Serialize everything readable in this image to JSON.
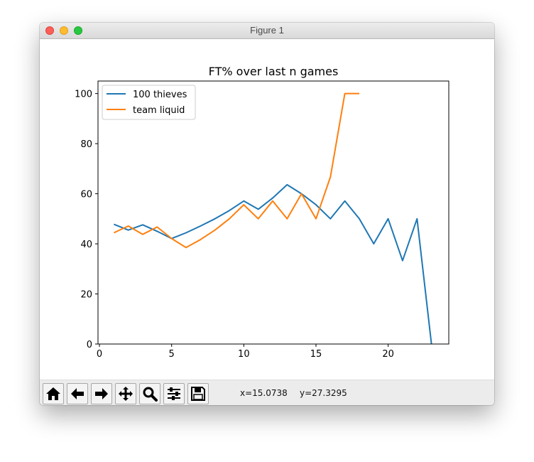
{
  "window": {
    "title": "Figure 1",
    "controls": [
      "close",
      "minimize",
      "zoom"
    ]
  },
  "toolbar": {
    "buttons": [
      "home-icon",
      "back-arrow-icon",
      "forward-arrow-icon",
      "pan-move-icon",
      "zoom-magnifier-icon",
      "configure-subplots-icon",
      "save-floppy-icon"
    ],
    "x_readout": "x=15.0738",
    "y_readout": "y=27.3295"
  },
  "chart_data": {
    "type": "line",
    "title": "FT% over last n games",
    "xlabel": "",
    "ylabel": "",
    "xlim": [
      -0.1,
      24.2
    ],
    "ylim": [
      0,
      105
    ],
    "xticks": [
      0,
      5,
      10,
      15,
      20
    ],
    "yticks": [
      0,
      20,
      40,
      60,
      80,
      100
    ],
    "legend_position": "top-left",
    "grid": false,
    "series": [
      {
        "name": "100 thieves",
        "color": "#1f77b4",
        "x": [
          1,
          2,
          3,
          4,
          5,
          6,
          7,
          8,
          9,
          10,
          11,
          12,
          13,
          14,
          15,
          16,
          17,
          18,
          19,
          20,
          21,
          22,
          23
        ],
        "y": [
          47.8,
          45.5,
          47.6,
          45.0,
          42.1,
          44.4,
          47.1,
          50.0,
          53.3,
          57.1,
          53.8,
          58.3,
          63.6,
          60.0,
          55.6,
          50.0,
          57.1,
          50.0,
          40.0,
          50.0,
          33.3,
          50.0,
          0.0
        ]
      },
      {
        "name": "team liquid",
        "color": "#ff7f0e",
        "x": [
          1,
          2,
          3,
          4,
          5,
          6,
          7,
          8,
          9,
          10,
          11,
          12,
          13,
          14,
          15,
          16,
          17,
          18
        ],
        "y": [
          44.4,
          47.1,
          43.8,
          46.7,
          42.1,
          38.5,
          41.7,
          45.5,
          50.0,
          55.6,
          50.0,
          57.1,
          50.0,
          60.0,
          50.0,
          66.7,
          100.0,
          100.0
        ]
      }
    ]
  }
}
